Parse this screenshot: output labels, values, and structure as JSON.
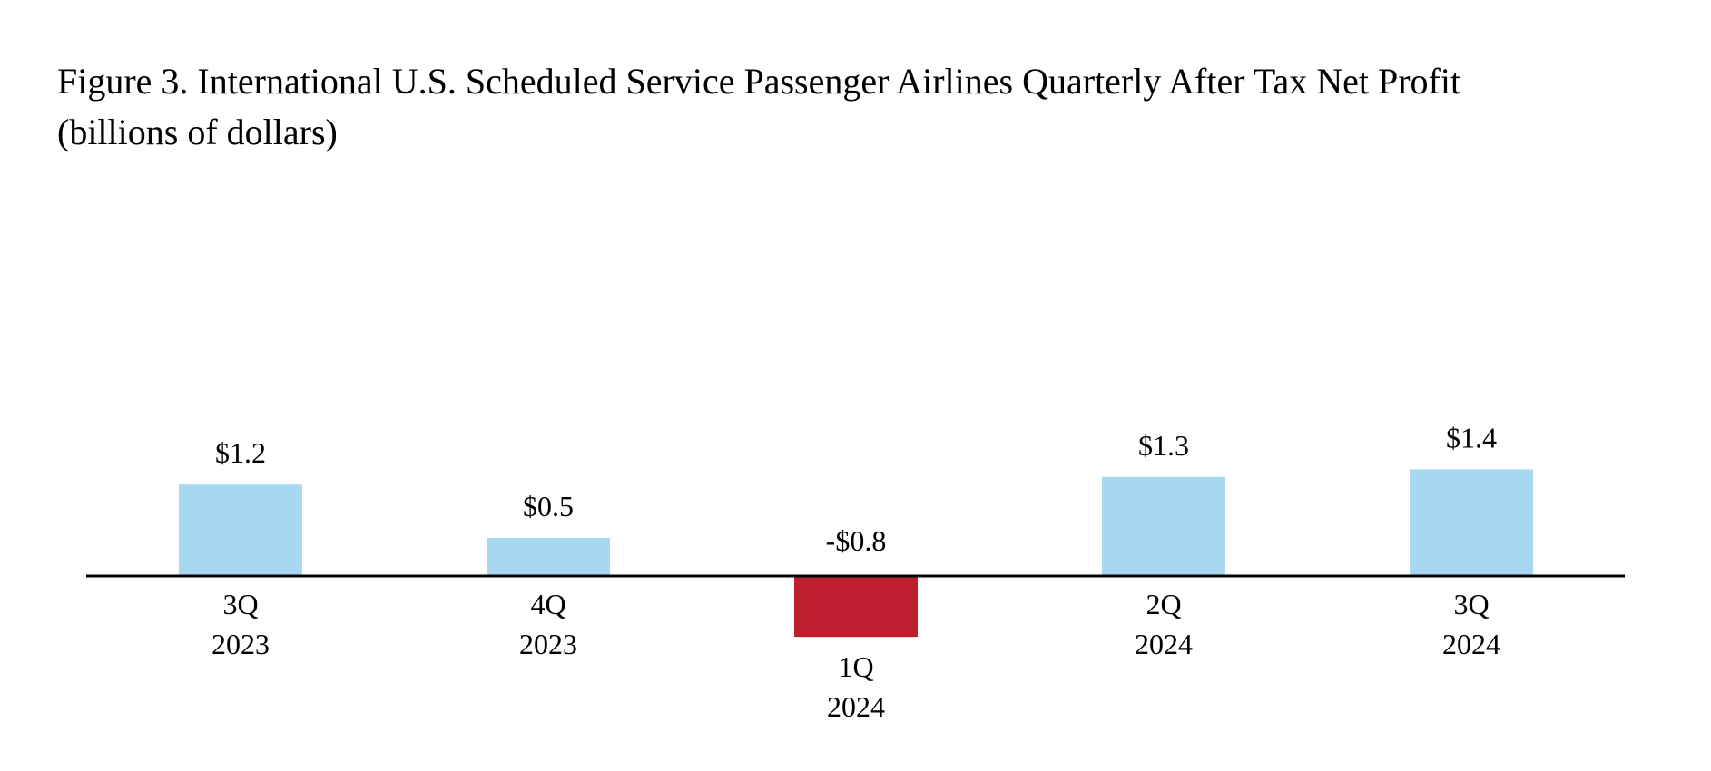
{
  "chart_data": {
    "type": "bar",
    "title": "Figure 3. International U.S. Scheduled Service Passenger Airlines Quarterly After Tax Net Profit",
    "subtitle": "(billions of dollars)",
    "xlabel": "",
    "ylabel": "",
    "categories": [
      {
        "quarter": "3Q",
        "year": "2023"
      },
      {
        "quarter": "4Q",
        "year": "2023"
      },
      {
        "quarter": "1Q",
        "year": "2024"
      },
      {
        "quarter": "2Q",
        "year": "2024"
      },
      {
        "quarter": "3Q",
        "year": "2024"
      }
    ],
    "values": [
      1.2,
      0.5,
      -0.8,
      1.3,
      1.4
    ],
    "value_labels": [
      "$1.2",
      "$0.5",
      "-$0.8",
      "$1.3",
      "$1.4"
    ],
    "ylim": [
      -0.8,
      1.4
    ],
    "grid": false,
    "legend": "none",
    "colors": {
      "positive": "#a6d8f2",
      "negative": "#be1e2d",
      "axis": "#000000"
    }
  }
}
